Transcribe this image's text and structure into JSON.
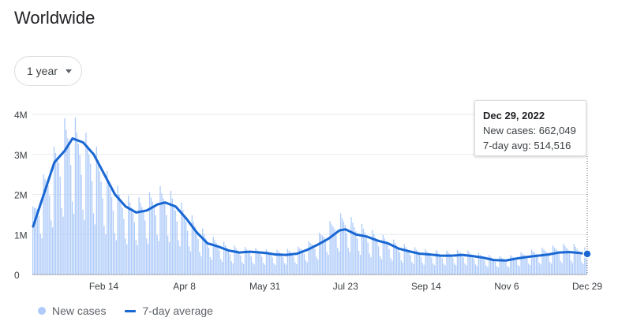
{
  "header": {
    "title": "Worldwide"
  },
  "range_selector": {
    "label": "1 year"
  },
  "tooltip": {
    "date": "Dec 29, 2022",
    "new_cases": "New cases: 662,049",
    "avg": "7-day avg: 514,516"
  },
  "legend": {
    "new_cases": "New cases",
    "avg": "7-day average"
  },
  "colors": {
    "bars": "#aecbfa",
    "line": "#1967d2",
    "grid": "#e8eaed",
    "axis": "#9aa0a6"
  },
  "chart_data": {
    "type": "bar",
    "title": "",
    "xlabel": "",
    "ylabel": "",
    "ylim": [
      0,
      4100000
    ],
    "y_ticks": [
      {
        "value": 0,
        "label": "0"
      },
      {
        "value": 1000000,
        "label": "1M"
      },
      {
        "value": 2000000,
        "label": "2M"
      },
      {
        "value": 3000000,
        "label": "3M"
      },
      {
        "value": 4000000,
        "label": "4M"
      }
    ],
    "x_range": [
      "2021-12-29",
      "2022-12-29"
    ],
    "x_ticks": [
      {
        "date": "2022-02-14",
        "label": "Feb 14"
      },
      {
        "date": "2022-04-08",
        "label": "Apr 8"
      },
      {
        "date": "2022-05-31",
        "label": "May 31"
      },
      {
        "date": "2022-07-23",
        "label": "Jul 23"
      },
      {
        "date": "2022-09-14",
        "label": "Sep 14"
      },
      {
        "date": "2022-11-06",
        "label": "Nov 6"
      },
      {
        "date": "2022-12-29",
        "label": "Dec 29"
      }
    ],
    "series": [
      {
        "name": "7-day average",
        "kind": "line",
        "points": [
          [
            "2021-12-29",
            1200000
          ],
          [
            "2022-01-05",
            2000000
          ],
          [
            "2022-01-12",
            2800000
          ],
          [
            "2022-01-19",
            3100000
          ],
          [
            "2022-01-24",
            3400000
          ],
          [
            "2022-01-31",
            3300000
          ],
          [
            "2022-02-07",
            3000000
          ],
          [
            "2022-02-14",
            2500000
          ],
          [
            "2022-02-21",
            2000000
          ],
          [
            "2022-02-28",
            1700000
          ],
          [
            "2022-03-07",
            1550000
          ],
          [
            "2022-03-14",
            1600000
          ],
          [
            "2022-03-21",
            1750000
          ],
          [
            "2022-03-26",
            1800000
          ],
          [
            "2022-04-02",
            1700000
          ],
          [
            "2022-04-09",
            1400000
          ],
          [
            "2022-04-16",
            1050000
          ],
          [
            "2022-04-23",
            780000
          ],
          [
            "2022-04-30",
            700000
          ],
          [
            "2022-05-07",
            600000
          ],
          [
            "2022-05-14",
            550000
          ],
          [
            "2022-05-21",
            570000
          ],
          [
            "2022-05-31",
            540000
          ],
          [
            "2022-06-07",
            500000
          ],
          [
            "2022-06-14",
            490000
          ],
          [
            "2022-06-21",
            520000
          ],
          [
            "2022-06-28",
            620000
          ],
          [
            "2022-07-05",
            750000
          ],
          [
            "2022-07-12",
            900000
          ],
          [
            "2022-07-19",
            1100000
          ],
          [
            "2022-07-23",
            1130000
          ],
          [
            "2022-07-30",
            1000000
          ],
          [
            "2022-08-06",
            950000
          ],
          [
            "2022-08-13",
            850000
          ],
          [
            "2022-08-20",
            780000
          ],
          [
            "2022-08-27",
            650000
          ],
          [
            "2022-09-03",
            580000
          ],
          [
            "2022-09-10",
            520000
          ],
          [
            "2022-09-17",
            500000
          ],
          [
            "2022-09-24",
            470000
          ],
          [
            "2022-10-01",
            470000
          ],
          [
            "2022-10-08",
            490000
          ],
          [
            "2022-10-15",
            460000
          ],
          [
            "2022-10-22",
            420000
          ],
          [
            "2022-10-29",
            360000
          ],
          [
            "2022-11-06",
            350000
          ],
          [
            "2022-11-13",
            400000
          ],
          [
            "2022-11-20",
            440000
          ],
          [
            "2022-11-27",
            470000
          ],
          [
            "2022-12-04",
            500000
          ],
          [
            "2022-12-11",
            550000
          ],
          [
            "2022-12-18",
            560000
          ],
          [
            "2022-12-24",
            540000
          ],
          [
            "2022-12-29",
            514516
          ]
        ]
      },
      {
        "name": "New cases",
        "kind": "bars",
        "points": [
          [
            "2021-12-29",
            1700000
          ],
          [
            "2022-01-05",
            2500000
          ],
          [
            "2022-01-12",
            3200000
          ],
          [
            "2022-01-19",
            3900000
          ],
          [
            "2022-01-24",
            4050000
          ],
          [
            "2022-01-31",
            3600000
          ],
          [
            "2022-02-07",
            3400000
          ],
          [
            "2022-02-14",
            2700000
          ],
          [
            "2022-02-21",
            2300000
          ],
          [
            "2022-02-28",
            2000000
          ],
          [
            "2022-03-07",
            1900000
          ],
          [
            "2022-03-14",
            2000000
          ],
          [
            "2022-03-21",
            2200000
          ],
          [
            "2022-03-26",
            2220000
          ],
          [
            "2022-04-02",
            2000000
          ],
          [
            "2022-04-09",
            1650000
          ],
          [
            "2022-04-16",
            1350000
          ],
          [
            "2022-04-23",
            1000000
          ],
          [
            "2022-04-30",
            900000
          ],
          [
            "2022-05-07",
            750000
          ],
          [
            "2022-05-14",
            700000
          ],
          [
            "2022-05-21",
            680000
          ],
          [
            "2022-05-31",
            640000
          ],
          [
            "2022-06-07",
            620000
          ],
          [
            "2022-06-14",
            640000
          ],
          [
            "2022-06-21",
            680000
          ],
          [
            "2022-06-28",
            800000
          ],
          [
            "2022-07-05",
            1000000
          ],
          [
            "2022-07-12",
            1300000
          ],
          [
            "2022-07-19",
            1520000
          ],
          [
            "2022-07-23",
            1550000
          ],
          [
            "2022-07-30",
            1350000
          ],
          [
            "2022-08-06",
            1200000
          ],
          [
            "2022-08-13",
            1050000
          ],
          [
            "2022-08-20",
            950000
          ],
          [
            "2022-08-27",
            820000
          ],
          [
            "2022-09-03",
            720000
          ],
          [
            "2022-09-10",
            650000
          ],
          [
            "2022-09-17",
            620000
          ],
          [
            "2022-09-24",
            600000
          ],
          [
            "2022-10-01",
            600000
          ],
          [
            "2022-10-08",
            630000
          ],
          [
            "2022-10-15",
            580000
          ],
          [
            "2022-10-22",
            520000
          ],
          [
            "2022-10-29",
            470000
          ],
          [
            "2022-11-06",
            460000
          ],
          [
            "2022-11-13",
            520000
          ],
          [
            "2022-11-20",
            600000
          ],
          [
            "2022-11-27",
            650000
          ],
          [
            "2022-12-04",
            700000
          ],
          [
            "2022-12-11",
            760000
          ],
          [
            "2022-12-18",
            780000
          ],
          [
            "2022-12-24",
            740000
          ],
          [
            "2022-12-29",
            662049
          ]
        ]
      }
    ]
  }
}
